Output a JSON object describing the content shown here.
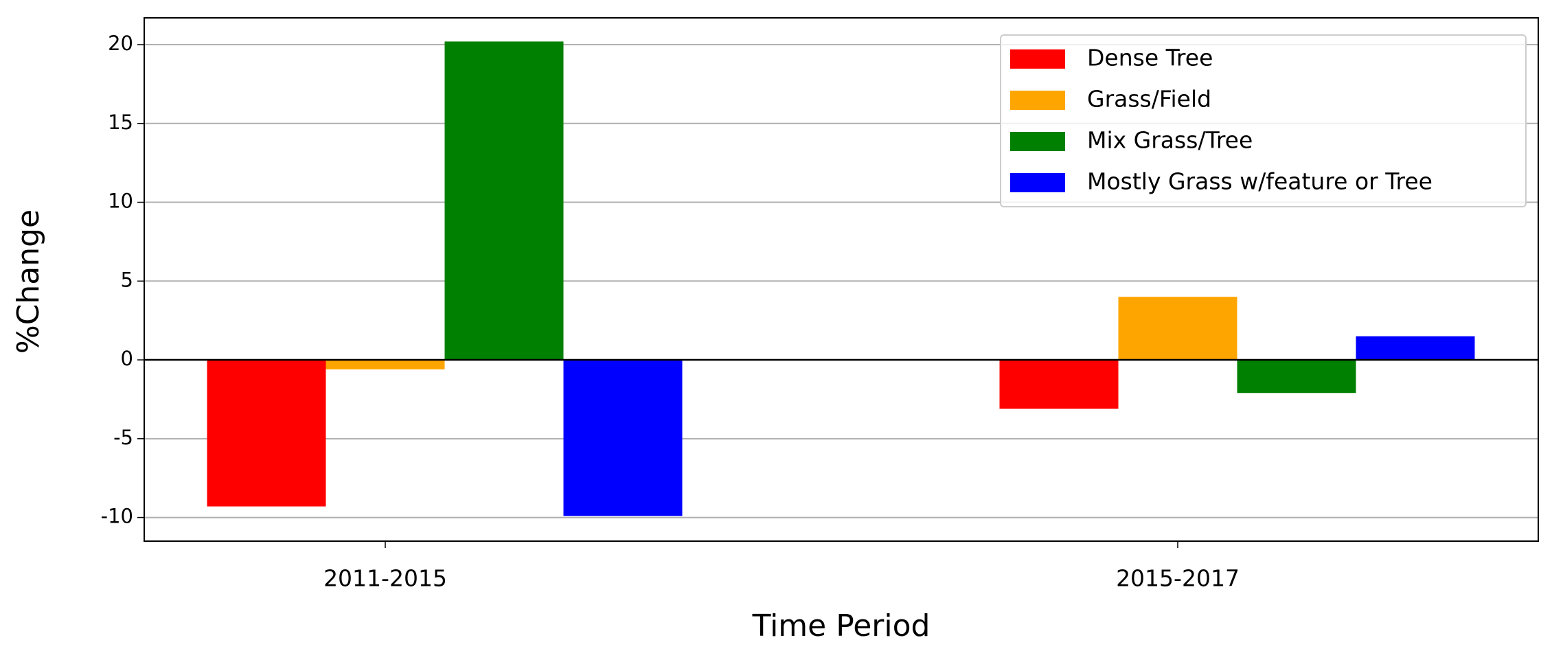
{
  "chart_data": {
    "type": "bar",
    "xlabel": "Time Period",
    "ylabel": "%Change",
    "categories": [
      "2011-2015",
      "2015-2017"
    ],
    "series": [
      {
        "name": "Dense Tree",
        "color": "#ff0000",
        "values": [
          -9.3,
          -3.1
        ]
      },
      {
        "name": "Grass/Field",
        "color": "#ffa500",
        "values": [
          -0.6,
          4.0
        ]
      },
      {
        "name": "Mix Grass/Tree",
        "color": "#008000",
        "values": [
          20.2,
          -2.1
        ]
      },
      {
        "name": "Mostly Grass w/feature or Tree",
        "color": "#0000ff",
        "values": [
          -9.9,
          1.5
        ]
      }
    ],
    "ylim": [
      -11.5,
      21.7
    ],
    "yticks": [
      -10,
      -5,
      0,
      5,
      10,
      15,
      20
    ],
    "grid": true,
    "legend": "upper right"
  }
}
